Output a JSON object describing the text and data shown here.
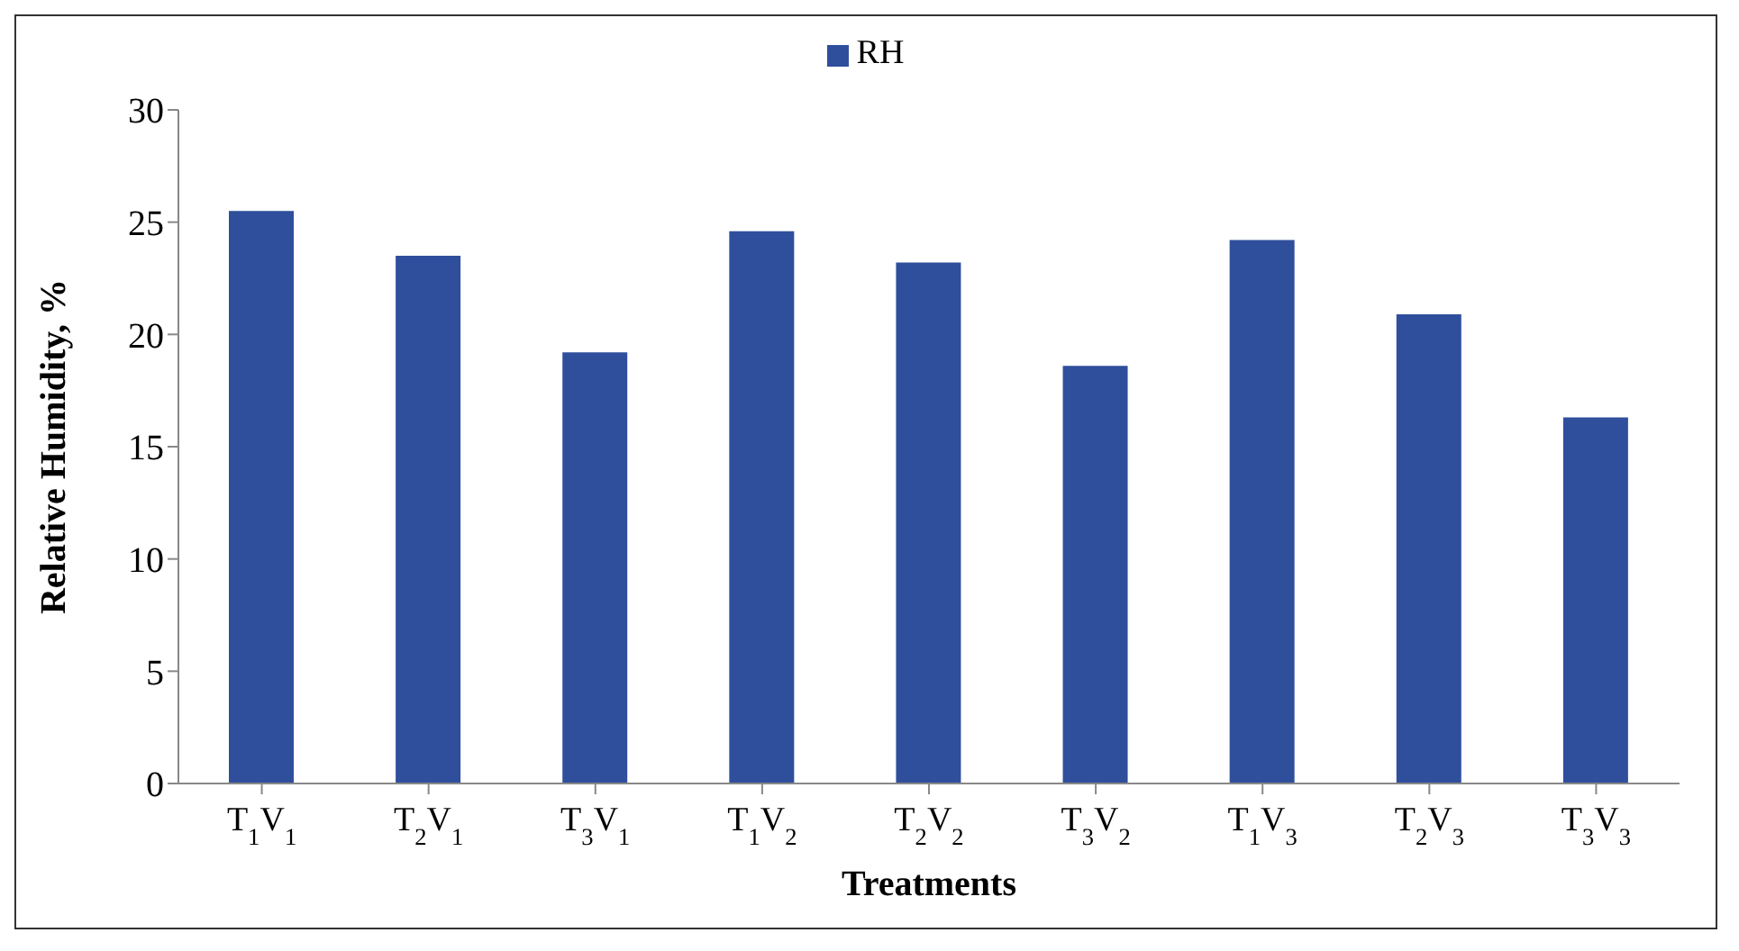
{
  "chart_data": {
    "type": "bar",
    "xlabel": "Treatments",
    "ylabel": "Relative Humidity, %",
    "categories": [
      "T$_{1}$V$_{1}$",
      "T$_{2}$V$_{1}$",
      "T$_{3}$V$_{1}$",
      "T$_{1}$V$_{2}$",
      "T$_{2}$V$_{2}$",
      "T$_{3}$V$_{2}$",
      "T$_{1}$V$_{3}$",
      "T$_{2}$V$_{3}$",
      "T$_{3}$V$_{3}$"
    ],
    "series": [
      {
        "name": "RH",
        "color": "#2f4f9c",
        "values": [
          25.5,
          23.5,
          19.2,
          24.6,
          23.2,
          18.6,
          24.2,
          20.9,
          16.3
        ]
      }
    ],
    "ylim": [
      0,
      30
    ],
    "yticks": [
      0,
      5,
      10,
      15,
      20,
      25,
      30
    ],
    "legend": "top",
    "grid": false
  }
}
